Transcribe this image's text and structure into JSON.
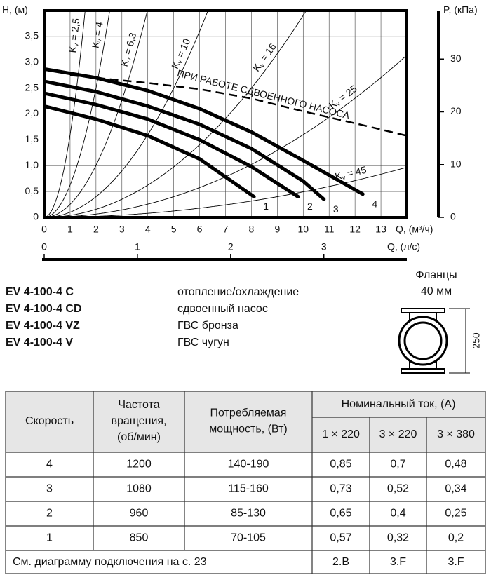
{
  "chart_data": {
    "type": "line",
    "xlabel": "Q, (м³/ч)",
    "ylabel": "H, (м)",
    "y2label": "P, (кПа)",
    "x2label": "Q, (л/с)",
    "xlim": [
      0,
      14
    ],
    "ylim": [
      0,
      4
    ],
    "y2lim": [
      0,
      39.2
    ],
    "x2lim": [
      0,
      3.89
    ],
    "xticks": [
      0,
      1,
      2,
      3,
      4,
      5,
      6,
      7,
      8,
      9,
      10,
      11,
      12,
      13
    ],
    "yticks": [
      0,
      {
        "value": 0.5,
        "label": "0,5"
      },
      {
        "value": 1,
        "label": "1,0"
      },
      {
        "value": 1.5,
        "label": "1,5"
      },
      {
        "value": 2,
        "label": "2,0"
      },
      {
        "value": 2.5,
        "label": "2,5"
      },
      {
        "value": 3,
        "label": "3,0"
      },
      {
        "value": 3.5,
        "label": "3,5"
      }
    ],
    "y2ticks": [
      0,
      10,
      20,
      30
    ],
    "x2ticks": [
      0,
      1,
      2,
      3
    ],
    "grid": true,
    "series": [
      {
        "name": "1",
        "color": "#000000",
        "style": "solid",
        "x": [
          0,
          2,
          4,
          6,
          8.1
        ],
        "values": [
          2.15,
          1.9,
          1.58,
          1.13,
          0.4
        ]
      },
      {
        "name": "2",
        "color": "#000000",
        "style": "solid",
        "x": [
          0,
          2,
          4,
          6,
          8,
          9.8
        ],
        "values": [
          2.4,
          2.18,
          1.9,
          1.5,
          0.98,
          0.4
        ]
      },
      {
        "name": "3",
        "color": "#000000",
        "style": "solid",
        "x": [
          0,
          2,
          4,
          6,
          8,
          10,
          10.8
        ],
        "values": [
          2.63,
          2.43,
          2.15,
          1.8,
          1.33,
          0.7,
          0.35
        ]
      },
      {
        "name": "4",
        "color": "#000000",
        "style": "solid",
        "x": [
          0,
          2,
          4,
          6,
          8,
          10,
          12.3
        ],
        "values": [
          2.87,
          2.7,
          2.45,
          2.1,
          1.65,
          1.1,
          0.45
        ]
      },
      {
        "name": "ПРИ РАБОТЕ СДВОЕННОГО НАСОСА",
        "color": "#000000",
        "style": "dashed",
        "x": [
          1,
          4,
          6,
          8,
          10,
          12,
          14
        ],
        "values": [
          2.75,
          2.6,
          2.48,
          2.3,
          2.05,
          1.82,
          1.58
        ]
      }
    ],
    "kv": {
      "symbol": "K",
      "subscript": "v",
      "values": [
        {
          "value": 2.5,
          "label": "= 2,5"
        },
        {
          "value": 4,
          "label": "= 4"
        },
        {
          "value": 6.3,
          "label": "= 6,3"
        },
        {
          "value": 10,
          "label": "= 10"
        },
        {
          "value": 16,
          "label": "= 16"
        },
        {
          "value": 25,
          "label": "= 25"
        },
        {
          "value": 45,
          "label": "= 45"
        }
      ]
    }
  },
  "models": [
    {
      "code": "EV 4-100-4 C",
      "description": "отопление/охлаждение"
    },
    {
      "code": "EV 4-100-4 CD",
      "description": "сдвоенный насос"
    },
    {
      "code": "EV 4-100-4 VZ",
      "description": "ГВС бронза"
    },
    {
      "code": "EV 4-100-4 V",
      "description": "ГВС чугун"
    }
  ],
  "flange": {
    "title": "Фланцы",
    "size": "40 мм",
    "length": "250"
  },
  "table": {
    "header": {
      "columns": [
        [
          "Скорость"
        ],
        [
          "Частота",
          "вращения,",
          "(об/мин)"
        ],
        [
          "Потребляемая",
          "мощность, (Вт)"
        ]
      ],
      "group": "Номинальный ток, (А)",
      "subcolumns": [
        "1 × 220",
        "3 × 220",
        "3 × 380"
      ]
    },
    "rows": [
      [
        "4",
        "1200",
        "140-190",
        "0,85",
        "0,7",
        "0,48"
      ],
      [
        "3",
        "1080",
        "115-160",
        "0,73",
        "0,52",
        "0,34"
      ],
      [
        "2",
        "960",
        "85-130",
        "0,65",
        "0,4",
        "0,25"
      ],
      [
        "1",
        "850",
        "70-105",
        "0,57",
        "0,32",
        "0,2"
      ]
    ],
    "footer": {
      "note": "См. диаграмму подключения на с. 23",
      "cells": [
        "2.B",
        "3.F",
        "3.F"
      ]
    }
  }
}
